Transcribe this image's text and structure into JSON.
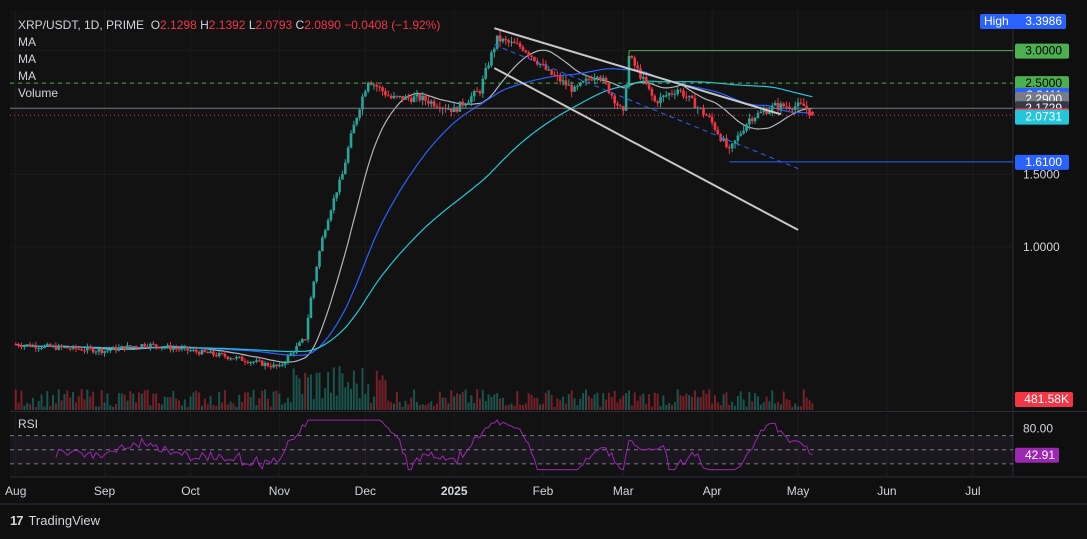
{
  "header": {
    "symbol": "XRP/USDT, 1D, PRIME",
    "open_label": "O",
    "open": "2.1298",
    "high_label": "H",
    "high": "2.1392",
    "low_label": "L",
    "low": "2.0793",
    "close_label": "C",
    "close": "2.0890",
    "change": "−0.0408 (−1.92%)",
    "indicators": [
      "MA",
      "MA",
      "MA",
      "Volume"
    ]
  },
  "rsi_label": "RSI",
  "brand": "TradingView",
  "colors": {
    "background": "#0f0f0f",
    "grid": "#1c1c1c",
    "up": "#26a69a",
    "down": "#f23645",
    "ma_fast": "#b2b5be",
    "ma_mid": "#2962ff",
    "ma_slow": "#26c6da",
    "rsi": "#9c27b0"
  },
  "chart_data": [
    {
      "type": "candlestick",
      "title": "XRP/USDT, 1D, PRIME",
      "y_scale": "log",
      "y_ticks": [
        "3.0000",
        "2.5000",
        "1.5000",
        "1.0000"
      ],
      "x_ticks": [
        "Aug",
        "Sep",
        "Oct",
        "Nov",
        "Dec",
        "2025",
        "Feb",
        "Mar",
        "Apr",
        "May",
        "Jun",
        "Jul"
      ],
      "price_path": [
        [
          "2024-08-01",
          0.58
        ],
        [
          "2024-08-15",
          0.57
        ],
        [
          "2024-09-01",
          0.56
        ],
        [
          "2024-09-15",
          0.58
        ],
        [
          "2024-10-01",
          0.56
        ],
        [
          "2024-10-15",
          0.54
        ],
        [
          "2024-11-01",
          0.51
        ],
        [
          "2024-11-10",
          0.6
        ],
        [
          "2024-11-16",
          1.05
        ],
        [
          "2024-11-23",
          1.5
        ],
        [
          "2024-12-02",
          2.55
        ],
        [
          "2024-12-10",
          2.3
        ],
        [
          "2024-12-20",
          2.3
        ],
        [
          "2025-01-01",
          2.15
        ],
        [
          "2025-01-10",
          2.4
        ],
        [
          "2025-01-16",
          3.2
        ],
        [
          "2025-01-25",
          3.05
        ],
        [
          "2025-02-03",
          2.65
        ],
        [
          "2025-02-12",
          2.4
        ],
        [
          "2025-02-20",
          2.65
        ],
        [
          "2025-03-01",
          2.1
        ],
        [
          "2025-03-03",
          2.9
        ],
        [
          "2025-03-12",
          2.25
        ],
        [
          "2025-03-20",
          2.42
        ],
        [
          "2025-03-31",
          2.05
        ],
        [
          "2025-04-07",
          1.7
        ],
        [
          "2025-04-14",
          2.05
        ],
        [
          "2025-04-23",
          2.2
        ],
        [
          "2025-05-03",
          2.2
        ],
        [
          "2025-05-06",
          2.089
        ]
      ],
      "price_labels": [
        {
          "text": "High",
          "value": "3.3986",
          "color": "#2962ff"
        },
        {
          "text": "",
          "value": "3.0000",
          "color": "#4caf50"
        },
        {
          "text": "",
          "value": "2.5000",
          "color": "#4caf50"
        },
        {
          "text": "",
          "value": "2.3411",
          "color": "#2962ff"
        },
        {
          "text": "",
          "value": "2.2900",
          "color": "#787b86"
        },
        {
          "text": "",
          "value": "2.1729",
          "color": "#363a45"
        },
        {
          "text": "",
          "value": "2.0890",
          "color": "#f23645"
        },
        {
          "text": "",
          "value": "2.0731",
          "color": "#26c6da"
        },
        {
          "text": "",
          "value": "1.6100",
          "color": "#2962ff"
        }
      ],
      "volume_last": "481.58K",
      "levels": [
        {
          "value": 3.0,
          "style": "solid",
          "color": "#4caf50"
        },
        {
          "value": 2.5,
          "style": "dashed",
          "color": "#4caf50"
        },
        {
          "value": 2.1729,
          "style": "solid",
          "color": "#787b86"
        },
        {
          "value": 2.089,
          "style": "dotted",
          "color": "#f23645"
        },
        {
          "value": 1.61,
          "style": "solid",
          "color": "#2962ff"
        }
      ]
    },
    {
      "type": "line",
      "title": "RSI",
      "y_ticks": [
        "80.00"
      ],
      "last_value": "42.91",
      "bands": [
        70,
        50,
        30
      ]
    }
  ]
}
